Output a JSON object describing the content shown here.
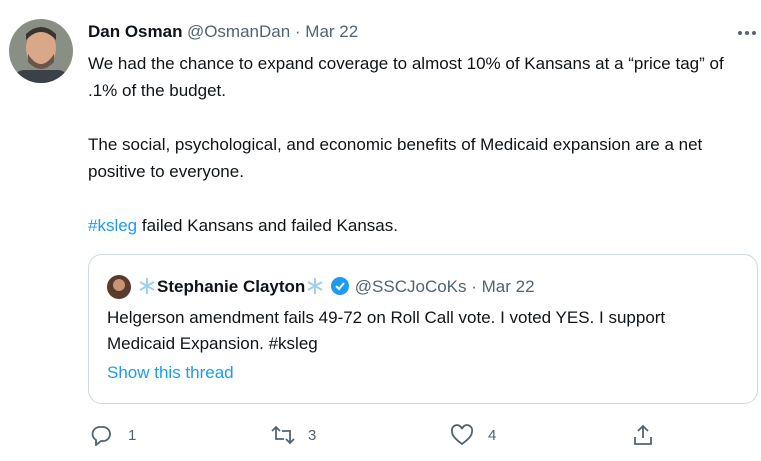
{
  "tweet": {
    "author": {
      "name": "Dan Osman",
      "meta": "@OsmanDan · Mar 22"
    },
    "paragraphs": [
      "We had the chance to expand coverage to almost 10% of Kansans at a “price tag” of .1% of the budget.",
      "The social, psychological, and economic benefits of Medicaid expansion are a net positive to everyone."
    ],
    "hashtag": "#ksleg",
    "last_paragraph": " failed Kansans and failed Kansas.",
    "quote": {
      "name": "Stephanie Clayton",
      "meta": "@SSCJoCoKs · Mar 22",
      "text": "Helgerson amendment fails 49-72 on Roll Call vote. I voted YES. I support Medicaid Expansion. #ksleg",
      "link": "Show this thread"
    },
    "actions": {
      "replies": 1,
      "retweets": 3,
      "likes": 4
    }
  }
}
